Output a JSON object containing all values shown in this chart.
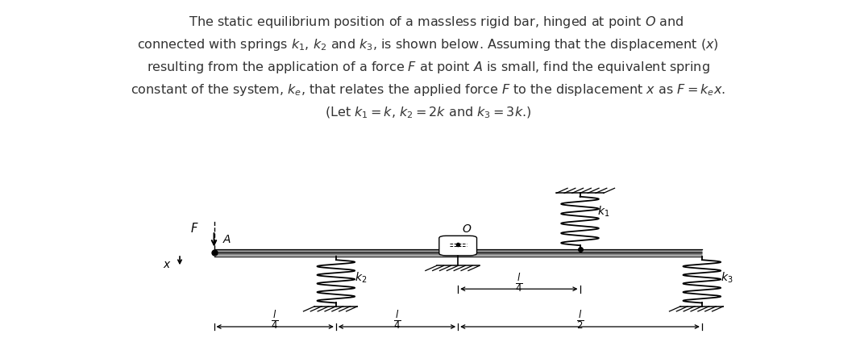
{
  "fig_width": 10.62,
  "fig_height": 4.5,
  "background": "#ffffff",
  "text_color": "#333333",
  "title_lines": [
    "    The static equilibrium position of a massless rigid bar, hinged at point $O$ and",
    "connected with springs $k_1$, $k_2$ and $k_3$, is shown below. Assuming that the displacement ($x$)",
    "resulting from the application of a force $F$ at point $A$ is small, find the equivalent spring",
    "constant of the system, $k_e$, that relates the applied force $F$ to the displacement $x$ as $F = k_e x$.",
    "(Let $k_1 = k$, $k_2 = 2k$ and $k_3 = 3k$.)"
  ],
  "bar_lw": 5,
  "spring_lw": 1.3,
  "n_coils_k1": 5,
  "n_coils_k2": 5,
  "n_coils_k3": 5
}
